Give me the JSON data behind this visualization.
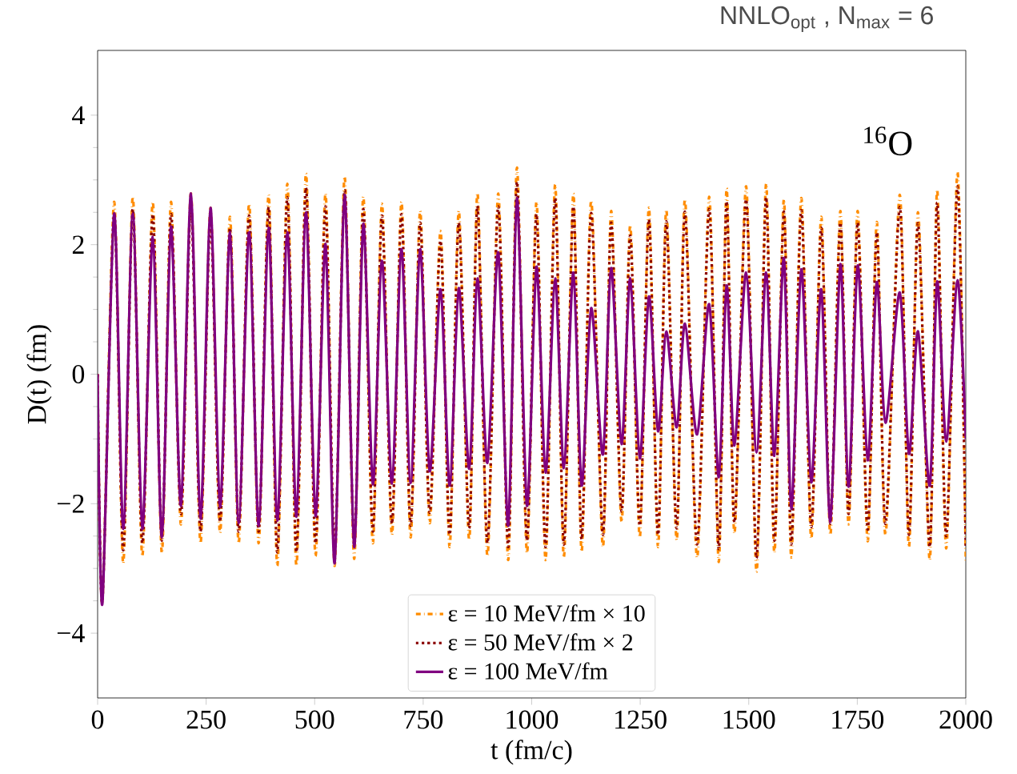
{
  "chart_data": {
    "type": "line",
    "title": "NNLO$_{opt}$ , N$_{max}$ = 6",
    "xlabel": "t (fm/c)",
    "ylabel": "D(t) (fm)",
    "annotations": [
      "$^{16}$O"
    ],
    "x": [
      0,
      11,
      38,
      59,
      81,
      103,
      127,
      148,
      169,
      192,
      215,
      237,
      260,
      282,
      305,
      325,
      349,
      371,
      394,
      414,
      437,
      458,
      480,
      502,
      525,
      546,
      569,
      591,
      612,
      634,
      655,
      678,
      700,
      721,
      743,
      765,
      790,
      811,
      832,
      856,
      875,
      898,
      923,
      946,
      966,
      989,
      1011,
      1032,
      1054,
      1074,
      1096,
      1115,
      1137,
      1164,
      1183,
      1207,
      1227,
      1249,
      1270,
      1291,
      1310,
      1334,
      1353,
      1381,
      1409,
      1431,
      1449,
      1467,
      1494,
      1518,
      1540,
      1559,
      1581,
      1598,
      1621,
      1644,
      1667,
      1688,
      1711,
      1730,
      1751,
      1774,
      1795,
      1815,
      1848,
      1869,
      1890,
      1917,
      1934,
      1955,
      1981,
      2000
    ],
    "series": [
      {
        "name": "ε = 10 MeV/fm × 10",
        "color": "#ff8c00",
        "line_style": "dashdot",
        "values": [
          0,
          -3.5,
          2.66,
          -2.92,
          2.74,
          -2.81,
          2.66,
          -2.76,
          2.66,
          -2.32,
          2.79,
          -2.61,
          2.57,
          -2.45,
          2.43,
          -2.61,
          2.63,
          -2.61,
          2.77,
          -2.96,
          2.94,
          -2.96,
          3.1,
          -2.81,
          2.79,
          -2.96,
          3.05,
          -2.85,
          2.74,
          -2.61,
          2.63,
          -2.48,
          2.66,
          -2.52,
          2.52,
          -2.3,
          2.21,
          -2.67,
          2.52,
          -2.56,
          2.8,
          -2.81,
          2.79,
          -2.87,
          3.19,
          -2.76,
          2.66,
          -2.87,
          2.93,
          -2.83,
          2.79,
          -2.74,
          2.68,
          -2.67,
          2.52,
          -2.28,
          2.3,
          -2.52,
          2.57,
          -2.67,
          2.54,
          -2.56,
          2.7,
          -2.83,
          2.74,
          -2.9,
          2.87,
          -2.46,
          2.9,
          -3.05,
          2.94,
          -2.76,
          2.7,
          -2.83,
          2.72,
          -2.54,
          2.43,
          -2.48,
          2.52,
          -2.32,
          2.52,
          -2.58,
          2.35,
          -2.48,
          2.77,
          -2.67,
          2.5,
          -2.87,
          2.85,
          -2.69,
          3.12,
          -2.9
        ]
      },
      {
        "name": "ε = 50 MeV/fm × 2",
        "color": "#8b0000",
        "line_style": "dotted",
        "values": [
          0,
          -3.5,
          2.47,
          -2.72,
          2.55,
          -2.61,
          2.47,
          -2.57,
          2.47,
          -2.16,
          2.59,
          -2.43,
          2.39,
          -2.28,
          2.26,
          -2.43,
          2.45,
          -2.43,
          2.58,
          -2.75,
          2.73,
          -2.75,
          2.88,
          -2.61,
          2.59,
          -2.75,
          2.84,
          -2.65,
          2.55,
          -2.43,
          2.45,
          -2.31,
          2.47,
          -2.34,
          2.34,
          -2.14,
          2.06,
          -2.48,
          2.34,
          -2.38,
          2.6,
          -2.61,
          2.59,
          -2.67,
          2.97,
          -2.57,
          2.47,
          -2.67,
          2.72,
          -2.63,
          2.59,
          -2.55,
          2.49,
          -2.48,
          2.34,
          -2.12,
          2.14,
          -2.34,
          2.39,
          -2.48,
          2.36,
          -2.38,
          2.51,
          -2.63,
          2.55,
          -2.7,
          2.67,
          -2.29,
          2.7,
          -2.84,
          2.73,
          -2.57,
          2.51,
          -2.63,
          2.53,
          -2.36,
          2.26,
          -2.31,
          2.34,
          -2.16,
          2.34,
          -2.4,
          2.19,
          -2.31,
          2.58,
          -2.48,
          2.33,
          -2.67,
          2.65,
          -2.5,
          2.9,
          -2.7
        ]
      },
      {
        "name": "ε = 100 MeV/fm",
        "color": "#800080",
        "line_style": "solid",
        "values": [
          0,
          -3.54,
          2.48,
          -2.39,
          2.48,
          -2.39,
          2.12,
          -2.52,
          2.28,
          -2.03,
          2.79,
          -2.23,
          2.57,
          -2.05,
          2.19,
          -2.3,
          2.19,
          -2.34,
          2.26,
          -2.26,
          2.19,
          -2.2,
          2.5,
          -2.19,
          2.01,
          -2.92,
          2.77,
          -2.67,
          2.32,
          -1.7,
          1.75,
          -1.69,
          1.93,
          -1.68,
          1.93,
          -1.5,
          1.31,
          -1.72,
          1.33,
          -1.46,
          1.48,
          -1.37,
          1.88,
          -2.34,
          2.72,
          -2.03,
          1.66,
          -1.52,
          1.48,
          -1.45,
          1.57,
          -1.72,
          1.02,
          -1.24,
          1.64,
          -1.08,
          1.48,
          -1.3,
          1.2,
          -0.88,
          0.66,
          -0.82,
          0.78,
          -0.93,
          1.08,
          -1.59,
          1.37,
          -1.1,
          1.57,
          -1.21,
          1.57,
          -1.26,
          1.79,
          -2.08,
          1.62,
          -1.67,
          1.31,
          -2.28,
          1.7,
          -1.74,
          1.68,
          -1.33,
          1.42,
          -0.75,
          1.26,
          -1.23,
          0.66,
          -1.72,
          1.43,
          -1.04,
          1.45,
          -1.0
        ]
      }
    ],
    "xlim": [
      0,
      2000
    ],
    "ylim": [
      -5,
      5
    ],
    "xticks": [
      0,
      250,
      500,
      750,
      1000,
      1250,
      1500,
      1750,
      2000
    ],
    "yticks": [
      {
        "value": -4,
        "label": "−4"
      },
      {
        "value": -2,
        "label": "−2"
      },
      0,
      2,
      {
        "value": 4,
        "label": "4"
      }
    ],
    "legend": "bottom"
  }
}
